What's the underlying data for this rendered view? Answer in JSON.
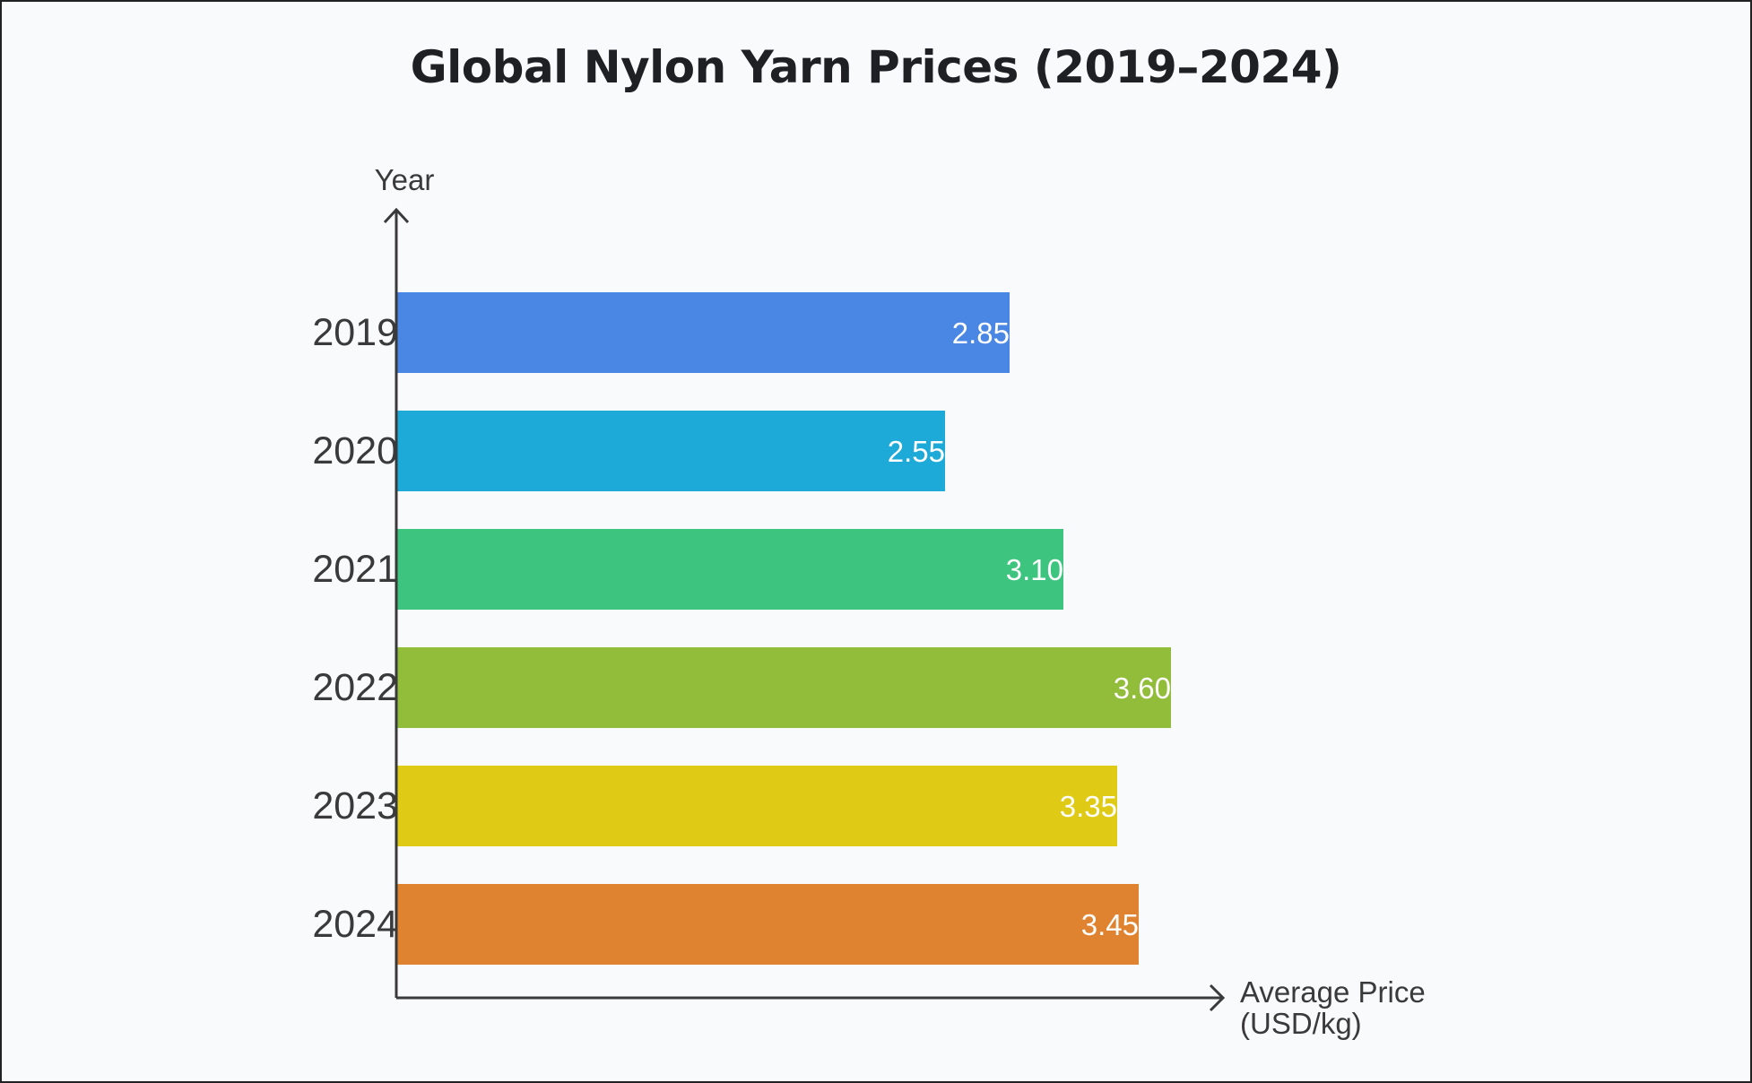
{
  "chart_data": {
    "type": "bar",
    "orientation": "horizontal",
    "title": "Global Nylon Yarn Prices (2019–2024)",
    "ylabel": "Year",
    "xlabel": [
      "Average Price",
      "(USD/kg)"
    ],
    "categories": [
      "2019",
      "2020",
      "2021",
      "2022",
      "2023",
      "2024"
    ],
    "values": [
      2.85,
      2.55,
      3.1,
      3.6,
      3.35,
      3.45
    ],
    "value_labels": [
      "2.85",
      "2.55",
      "3.10",
      "3.60",
      "3.35",
      "3.45"
    ],
    "colors": [
      "#4a86e4",
      "#1eaad9",
      "#3dc47f",
      "#92bd3a",
      "#dfcb16",
      "#df8330"
    ],
    "xlim": [
      0,
      3.83
    ],
    "grid": false,
    "legend": "none"
  }
}
